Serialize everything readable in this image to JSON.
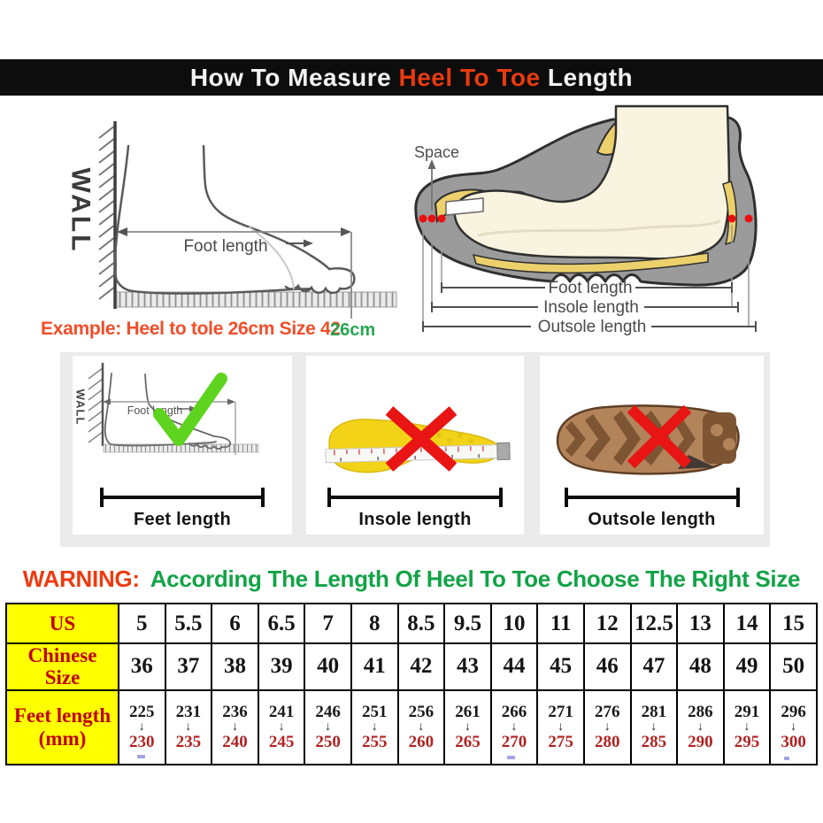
{
  "header": {
    "title_prefix": "How To Measure ",
    "title_highlight": "Heel To Toe",
    "title_suffix": " Length"
  },
  "measure_diagram": {
    "wall_label": "WALL",
    "foot_length_label": "Foot length",
    "example_text": "Example: Heel to tole 26cm Size 42",
    "measurement_label": "26cm"
  },
  "shoe_diagram": {
    "space_label": "Space",
    "foot_length_label": "Foot length",
    "insole_length_label": "Insole length",
    "outsole_length_label": "Outsole length"
  },
  "method_cards": [
    {
      "label": "Feet length",
      "icon": "check-icon",
      "wall_label": "WALL",
      "foot_length_label": "Foot length"
    },
    {
      "label": "Insole length",
      "icon": "cross-icon"
    },
    {
      "label": "Outsole length",
      "icon": "cross-icon"
    }
  ],
  "warning": {
    "prefix": "WARNING:",
    "message": "According The Length Of Heel To Toe Choose The Right Size"
  },
  "size_table": {
    "row_headers": [
      "US",
      "Chinese Size",
      "Feet length (mm)"
    ],
    "arrow_glyph": "↓",
    "us_sizes": [
      "5",
      "5.5",
      "6",
      "6.5",
      "7",
      "8",
      "8.5",
      "9.5",
      "10",
      "11",
      "12",
      "12.5",
      "13",
      "14",
      "15"
    ],
    "chinese_sizes": [
      "36",
      "37",
      "38",
      "39",
      "40",
      "41",
      "42",
      "43",
      "44",
      "45",
      "46",
      "47",
      "48",
      "49",
      "50"
    ],
    "feet_length_mm": [
      {
        "from": "225",
        "to": "230"
      },
      {
        "from": "231",
        "to": "235"
      },
      {
        "from": "236",
        "to": "240"
      },
      {
        "from": "241",
        "to": "245"
      },
      {
        "from": "246",
        "to": "250"
      },
      {
        "from": "251",
        "to": "255"
      },
      {
        "from": "256",
        "to": "260"
      },
      {
        "from": "261",
        "to": "265"
      },
      {
        "from": "266",
        "to": "270"
      },
      {
        "from": "271",
        "to": "275"
      },
      {
        "from": "276",
        "to": "280"
      },
      {
        "from": "281",
        "to": "285"
      },
      {
        "from": "286",
        "to": "290"
      },
      {
        "from": "291",
        "to": "295"
      },
      {
        "from": "296",
        "to": "300"
      }
    ]
  },
  "colors": {
    "title_bar_bg": "#0d0d0d",
    "title_accent": "#e93a10",
    "example_red": "#f04e2a",
    "measure_green": "#27a653",
    "warning_red": "#ee3a10",
    "warning_green": "#12a347",
    "table_header_bg": "#ffff00",
    "table_header_text": "#c00000",
    "feet_to_red": "#b22222",
    "check_green": "#5fd41f",
    "cross_red": "#e91414",
    "dot_red": "#ea0f0f",
    "shoe_gray": "#9b9b9b",
    "foot_cream": "#f8f4df",
    "insole_yellow": "#ecd06c",
    "panel_gray": "#ebebeb"
  }
}
